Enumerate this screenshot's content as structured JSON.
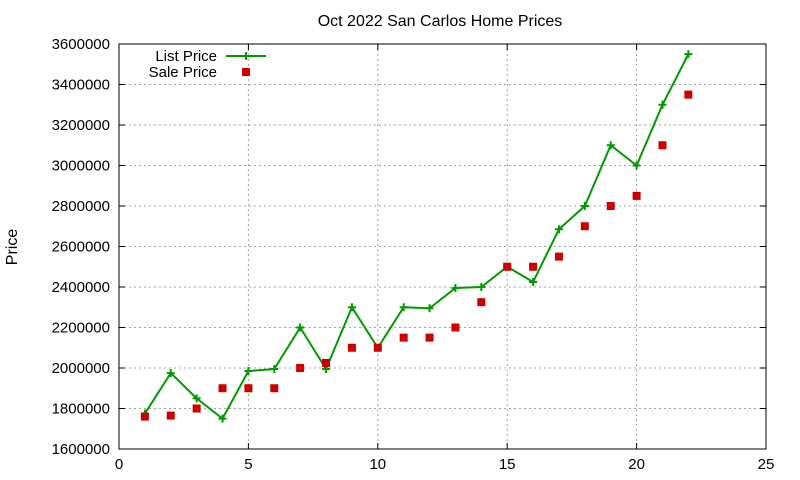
{
  "chart_data": {
    "type": "line",
    "title": "Oct 2022 San Carlos Home Prices",
    "xlabel": "",
    "ylabel": "Price",
    "xlim": [
      0,
      25
    ],
    "ylim": [
      1600000,
      3600000
    ],
    "x_ticks": [
      0,
      5,
      10,
      15,
      20,
      25
    ],
    "y_ticks": [
      1600000,
      1800000,
      2000000,
      2200000,
      2400000,
      2600000,
      2800000,
      3000000,
      3200000,
      3400000,
      3600000
    ],
    "grid": true,
    "legend_position": "top-left",
    "x": [
      1,
      2,
      3,
      4,
      5,
      6,
      7,
      8,
      9,
      10,
      11,
      12,
      13,
      14,
      15,
      16,
      17,
      18,
      19,
      20,
      21,
      22
    ],
    "series": [
      {
        "name": "List Price",
        "style": "line-with-plus-markers",
        "color": "#009900",
        "values": [
          1775000,
          1975000,
          1850000,
          1750000,
          1985000,
          1995000,
          2200000,
          1995000,
          2300000,
          2100000,
          2300000,
          2295000,
          2395000,
          2400000,
          2500000,
          2425000,
          2685000,
          2800000,
          3100000,
          3000000,
          3300000,
          3550000
        ]
      },
      {
        "name": "Sale Price",
        "style": "square-markers",
        "color": "#cc0000",
        "values": [
          1760000,
          1765000,
          1800000,
          1900000,
          1900000,
          1900000,
          2000000,
          2025000,
          2100000,
          2100000,
          2150000,
          2150000,
          2200000,
          2325000,
          2500000,
          2500000,
          2550000,
          2700000,
          2800000,
          2850000,
          3100000,
          3350000
        ]
      }
    ]
  }
}
